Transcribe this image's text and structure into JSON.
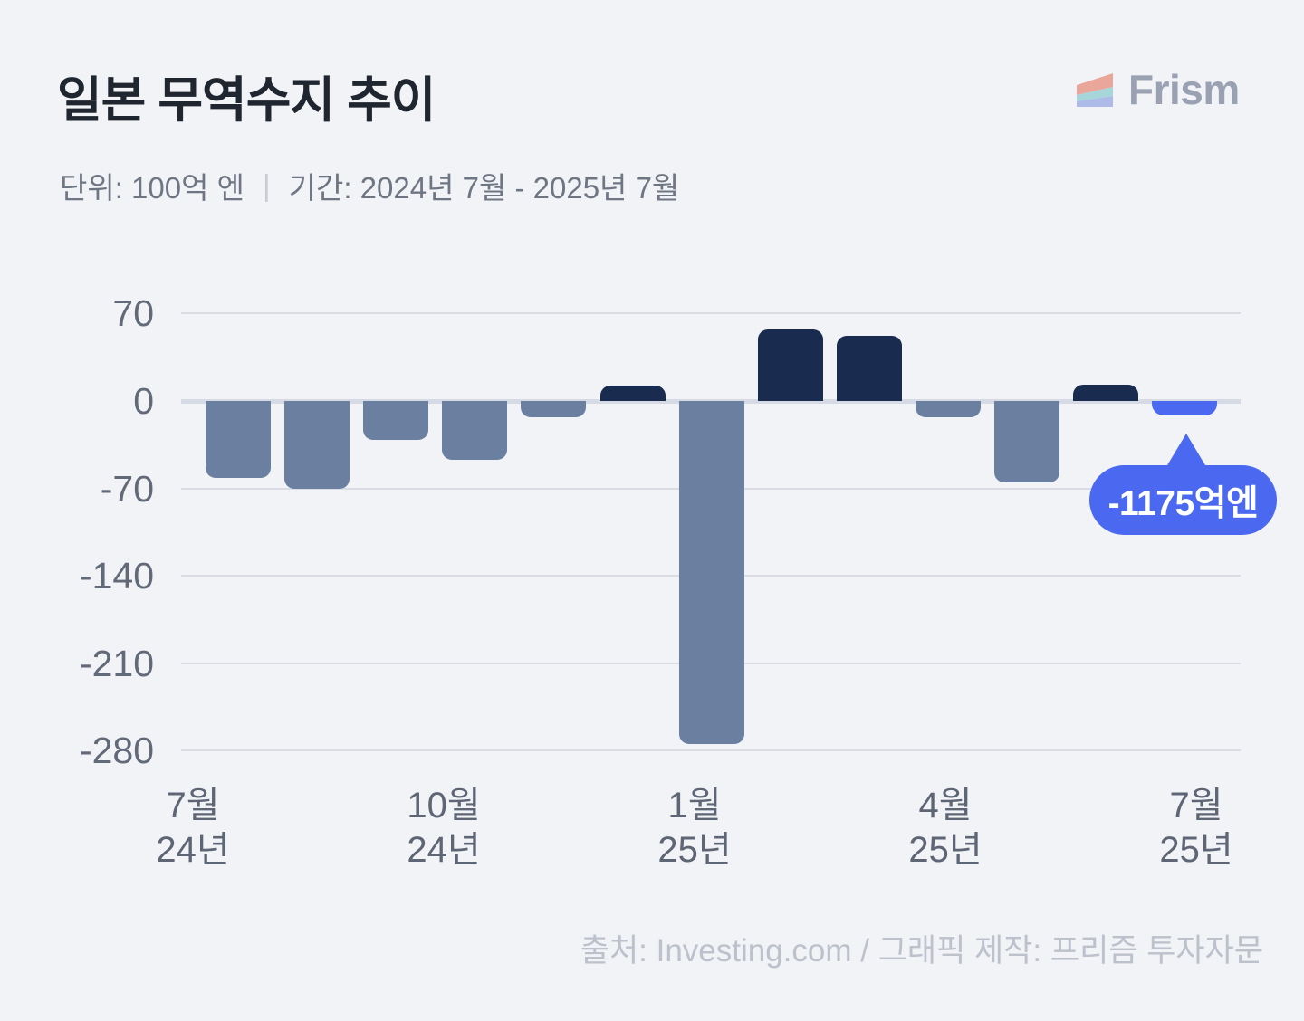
{
  "header": {
    "title": "일본 무역수지 추이",
    "subtitle_unit": "단위: 100억 엔",
    "subtitle_divider": "|",
    "subtitle_period": "기간: 2024년 7월 - 2025년 7월",
    "brand_name": "Frism"
  },
  "colors": {
    "background": "#f1f3f6",
    "bar_negative": "#6b7fa0",
    "bar_positive": "#1a2b50",
    "bar_accent": "#4b69f0",
    "gridline": "#dadde3",
    "zero_line": "#d6dae4",
    "title_text": "#20262f",
    "subtitle_text": "#6f7683",
    "axis_text": "#626a7a",
    "footer_text": "#bcc1cb",
    "brand_text": "#99a1b3",
    "callout_bg": "#4b69f0",
    "callout_text": "#ffffff",
    "logo_stripe_top": "#eba69c",
    "logo_stripe_middle": "#a6d6da",
    "logo_stripe_bottom": "#aebbe9"
  },
  "chart_data": {
    "type": "bar",
    "title": "일본 무역수지 추이",
    "unit": "100억 엔",
    "period": "2024년 7월 - 2025년 7월",
    "categories": [
      "2024-07",
      "2024-08",
      "2024-09",
      "2024-10",
      "2024-11",
      "2024-12",
      "2025-01",
      "2025-02",
      "2025-03",
      "2025-04",
      "2025-05",
      "2025-06",
      "2025-07"
    ],
    "values": [
      -62,
      -70,
      -31,
      -47,
      -13,
      12,
      -275,
      57,
      52,
      -13,
      -65,
      13,
      -11.75
    ],
    "bar_styles": [
      "negative",
      "negative",
      "negative",
      "negative",
      "negative",
      "positive",
      "negative",
      "positive",
      "positive",
      "negative",
      "negative",
      "positive",
      "accent"
    ],
    "y_ticks": [
      70,
      0,
      -70,
      -140,
      -210,
      -280
    ],
    "ylim": [
      -280,
      70
    ],
    "grid": true,
    "legend": false,
    "x_tick_labels": [
      {
        "line1": "7월",
        "line2": "24년"
      },
      {
        "line1": "10월",
        "line2": "24년"
      },
      {
        "line1": "1월",
        "line2": "25년"
      },
      {
        "line1": "4월",
        "line2": "25년"
      },
      {
        "line1": "7월",
        "line2": "25년"
      }
    ],
    "annotation": {
      "text": "-1175억엔",
      "target_category": "2025-07",
      "target_index": 12
    }
  },
  "footer": {
    "source": "출처: Investing.com / 그래픽 제작: 프리즘 투자자문"
  }
}
